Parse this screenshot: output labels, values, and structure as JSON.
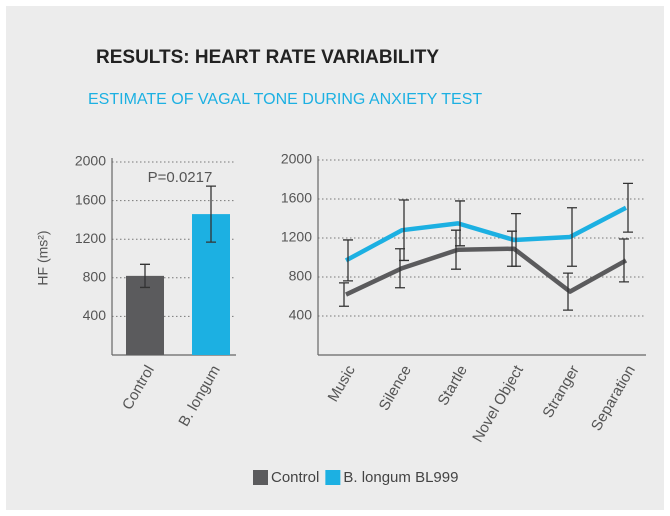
{
  "title": "RESULTS: HEART RATE VARIABILITY",
  "subtitle": "ESTIMATE OF VAGAL TONE DURING ANXIETY TEST",
  "chart_data": [
    {
      "type": "bar",
      "y_label": "HF (ms²)",
      "annotation": "P=0.0217",
      "categories": [
        "Control",
        "B. longum"
      ],
      "values": [
        820,
        1460
      ],
      "errors": [
        120,
        290
      ],
      "colors": [
        "#5b5b5d",
        "#1cb0e2"
      ],
      "ylim": [
        0,
        2000
      ],
      "yticks": [
        400,
        800,
        1200,
        1600,
        2000
      ],
      "grid": true
    },
    {
      "type": "line",
      "categories": [
        "Music",
        "Silence",
        "Startle",
        "Novel Object",
        "Stranger",
        "Separation"
      ],
      "series": [
        {
          "name": "Control",
          "color": "#5b5b5d",
          "values": [
            620,
            890,
            1080,
            1090,
            650,
            970
          ],
          "errors": [
            120,
            200,
            200,
            180,
            190,
            220
          ]
        },
        {
          "name": "B. longum BL999",
          "color": "#1cb0e2",
          "values": [
            970,
            1280,
            1350,
            1180,
            1210,
            1510
          ],
          "errors": [
            210,
            310,
            230,
            270,
            300,
            250
          ]
        }
      ],
      "ylim": [
        0,
        2000
      ],
      "yticks": [
        400,
        800,
        1200,
        1600,
        2000
      ],
      "grid": true
    }
  ]
}
